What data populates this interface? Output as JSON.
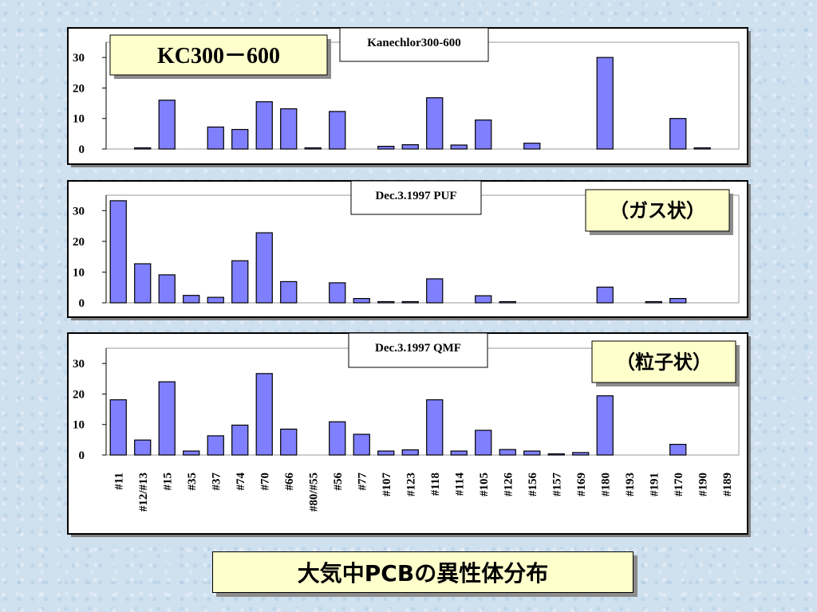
{
  "categories": [
    "#11",
    "#12/#13",
    "#15",
    "#35",
    "#37",
    "#74",
    "#70",
    "#66",
    "#80/#55",
    "#56",
    "#77",
    "#107",
    "#123",
    "#118",
    "#114",
    "#105",
    "#126",
    "#156",
    "#157",
    "#169",
    "#180",
    "#193",
    "#191",
    "#170",
    "#190",
    "#189"
  ],
  "colors": {
    "bar": "#7f7fff",
    "label_bg": "#ffffcc",
    "panel_bg": "#ffffff",
    "page_bg": "#cfe0ef"
  },
  "chart_data": [
    {
      "type": "bar",
      "legend_label": "Kanechlor300-600",
      "badge": "KC300－600",
      "ylim": [
        0,
        35
      ],
      "yticks": [
        "0",
        "10",
        "20",
        "30"
      ],
      "grid": false,
      "values": [
        0,
        0.4,
        16,
        0,
        7.2,
        6.4,
        15.5,
        13.2,
        0.4,
        12.3,
        0,
        0.9,
        1.4,
        16.8,
        1.3,
        9.5,
        0,
        1.9,
        0,
        0,
        30,
        0,
        0,
        10,
        0.4,
        0
      ]
    },
    {
      "type": "bar",
      "legend_label": "Dec.3.1997 PUF",
      "badge": "（ガス状）",
      "ylim": [
        0,
        35
      ],
      "yticks": [
        "0",
        "10",
        "20",
        "30"
      ],
      "grid": false,
      "values": [
        33.2,
        12.7,
        9.1,
        2.4,
        1.8,
        13.7,
        22.8,
        6.9,
        0,
        6.5,
        1.4,
        0.4,
        0.4,
        7.8,
        0,
        2.3,
        0.4,
        0,
        0,
        0,
        5.1,
        0,
        0.4,
        1.4,
        0,
        0
      ]
    },
    {
      "type": "bar",
      "legend_label": "Dec.3.1997 QMF",
      "badge": "（粒子状）",
      "ylim": [
        0,
        35
      ],
      "yticks": [
        "0",
        "10",
        "20",
        "30"
      ],
      "grid": false,
      "values": [
        18.1,
        4.9,
        24,
        1.3,
        6.3,
        9.8,
        26.7,
        8.5,
        0,
        10.9,
        6.8,
        1.3,
        1.7,
        18.1,
        1.3,
        8.1,
        1.8,
        1.3,
        0.4,
        0.8,
        19.4,
        0,
        0,
        3.5,
        0,
        0
      ]
    }
  ],
  "footer_title": "大気中PCBの異性体分布"
}
